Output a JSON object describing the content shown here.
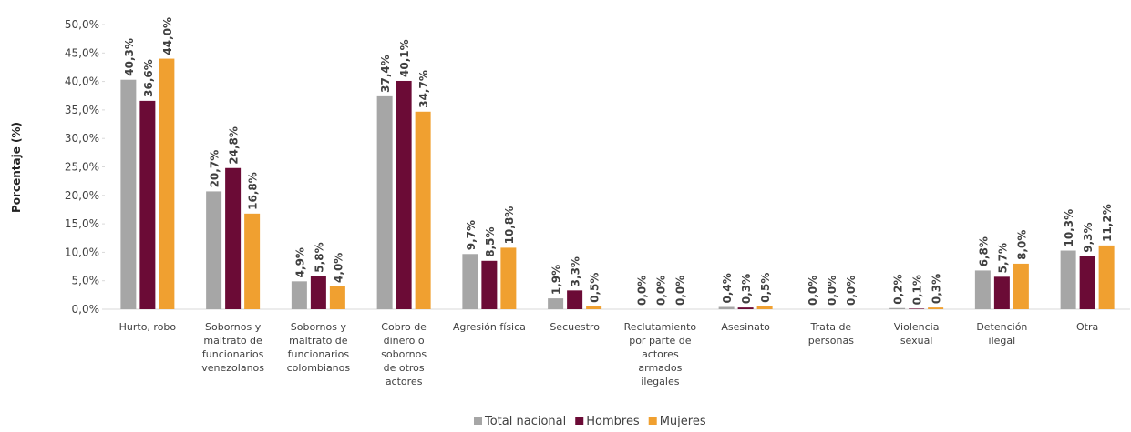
{
  "chart_data": {
    "type": "bar",
    "y_label": "Porcentaje (%)",
    "categories": [
      "Hurto, robo",
      "Sobornos y\nmaltrato de\nfuncionarios\nvenezolanos",
      "Sobornos y\nmaltrato de\nfuncionarios\ncolombianos",
      "Cobro de\ndinero o\nsobornos\nde otros\nactores",
      "Agresión física",
      "Secuestro",
      "Reclutamiento\npor parte de\nactores\narmados\nilegales",
      "Asesinato",
      "Trata de\npersonas",
      "Violencia\nsexual",
      "Detención\nilegal",
      "Otra"
    ],
    "series": [
      {
        "name": "Total nacional",
        "color": "#a6a6a6",
        "values": [
          40.3,
          20.7,
          4.9,
          37.4,
          9.7,
          1.9,
          0.0,
          0.4,
          0.0,
          0.2,
          6.8,
          10.3
        ],
        "value_labels": [
          "40,3%",
          "20,7%",
          "4,9%",
          "37,4%",
          "9,7%",
          "1,9%",
          "0,0%",
          "0,4%",
          "0,0%",
          "0,2%",
          "6,8%",
          "10,3%"
        ]
      },
      {
        "name": "Hombres",
        "color": "#6b0b36",
        "values": [
          36.6,
          24.8,
          5.8,
          40.1,
          8.5,
          3.3,
          0.0,
          0.3,
          0.0,
          0.1,
          5.7,
          9.3
        ],
        "value_labels": [
          "36,6%",
          "24,8%",
          "5,8%",
          "40,1%",
          "8,5%",
          "3,3%",
          "0,0%",
          "0,3%",
          "0,0%",
          "0,1%",
          "5,7%",
          "9,3%"
        ]
      },
      {
        "name": "Mujeres",
        "color": "#f0a030",
        "values": [
          44.0,
          16.8,
          4.0,
          34.7,
          10.8,
          0.5,
          0.0,
          0.5,
          0.0,
          0.3,
          8.0,
          11.2
        ],
        "value_labels": [
          "44,0%",
          "16,8%",
          "4,0%",
          "34,7%",
          "10,8%",
          "0,5%",
          "0,0%",
          "0,5%",
          "0,0%",
          "0,3%",
          "8,0%",
          "11,2%"
        ]
      }
    ],
    "ylim": [
      0,
      50
    ],
    "yticks": [
      {
        "value": 0,
        "label": "0,0%"
      },
      {
        "value": 5,
        "label": "5,0%"
      },
      {
        "value": 10,
        "label": "10,0%"
      },
      {
        "value": 15,
        "label": "15,0%"
      },
      {
        "value": 20,
        "label": "20,0%"
      },
      {
        "value": 25,
        "label": "25,0%"
      },
      {
        "value": 30,
        "label": "30,0%"
      },
      {
        "value": 35,
        "label": "35,0%"
      },
      {
        "value": 40,
        "label": "40,0%"
      },
      {
        "value": 45,
        "label": "45,0%"
      },
      {
        "value": 50,
        "label": "50,0%"
      }
    ],
    "legend": "bottom"
  }
}
